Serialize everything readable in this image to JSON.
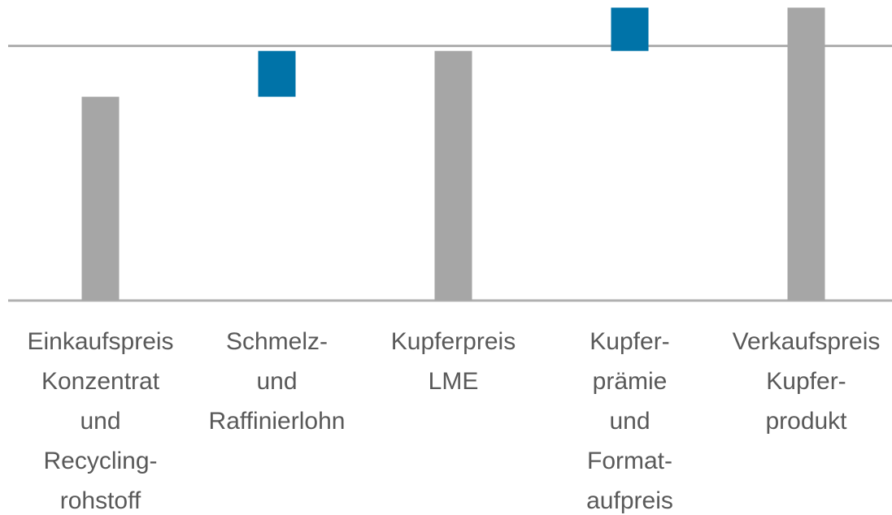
{
  "chart_data": {
    "type": "waterfall",
    "categories": [
      [
        "Einkaufspreis",
        "Konzentrat",
        "und",
        "Recycling-",
        "rohstoff"
      ],
      [
        "Schmelz-",
        "und",
        "Raffinierlohn"
      ],
      [
        "Kupferpreis",
        "LME"
      ],
      [
        "Kupfer-",
        "prämie",
        "und",
        "Format-",
        "aufpreis"
      ],
      [
        "Verkaufspreis",
        "Kupfer-",
        "produkt"
      ]
    ],
    "values": [
      80,
      18,
      98,
      17,
      115
    ],
    "kinds": [
      "total",
      "delta",
      "total",
      "delta",
      "total"
    ],
    "colors": {
      "total": "#a6a6a6",
      "delta": "#0073a8"
    },
    "ylim": [
      0,
      118
    ],
    "yticks": [
      0,
      100
    ],
    "grid": true,
    "show_tick_labels": false
  }
}
